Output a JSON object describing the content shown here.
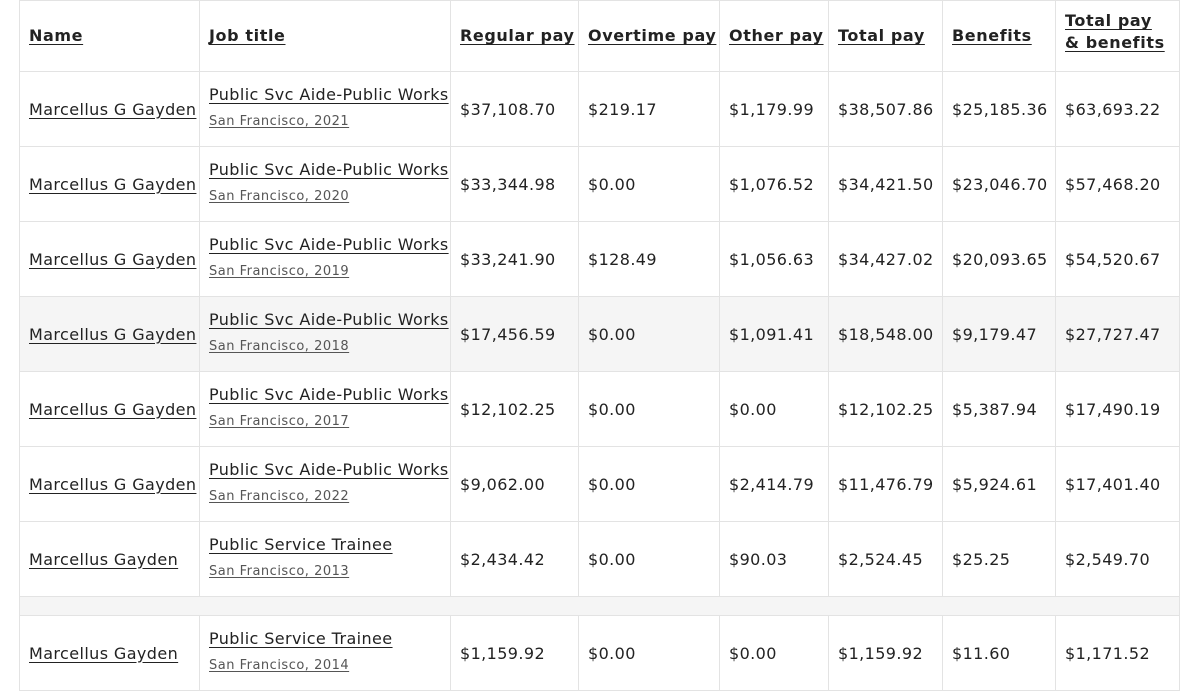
{
  "table": {
    "headers": {
      "name": "Name",
      "job_title": "Job title",
      "regular_pay": "Regular pay",
      "overtime_pay": "Overtime pay",
      "other_pay": "Other pay",
      "total_pay": "Total pay",
      "benefits": "Benefits",
      "total_pay_benefits": "Total pay & benefits"
    },
    "rows": [
      {
        "name": "Marcellus G Gayden",
        "job": "Public Svc Aide-Public Works",
        "agency": "San Francisco, 2021",
        "regular": "$37,108.70",
        "overtime": "$219.17",
        "other": "$1,179.99",
        "total": "$38,507.86",
        "benefits": "$25,185.36",
        "total_benefits": "$63,693.22"
      },
      {
        "name": "Marcellus G Gayden",
        "job": "Public Svc Aide-Public Works",
        "agency": "San Francisco, 2020",
        "regular": "$33,344.98",
        "overtime": "$0.00",
        "other": "$1,076.52",
        "total": "$34,421.50",
        "benefits": "$23,046.70",
        "total_benefits": "$57,468.20"
      },
      {
        "name": "Marcellus G Gayden",
        "job": "Public Svc Aide-Public Works",
        "agency": "San Francisco, 2019",
        "regular": "$33,241.90",
        "overtime": "$128.49",
        "other": "$1,056.63",
        "total": "$34,427.02",
        "benefits": "$20,093.65",
        "total_benefits": "$54,520.67"
      },
      {
        "name": "Marcellus G Gayden",
        "job": "Public Svc Aide-Public Works",
        "agency": "San Francisco, 2018",
        "regular": "$17,456.59",
        "overtime": "$0.00",
        "other": "$1,091.41",
        "total": "$18,548.00",
        "benefits": "$9,179.47",
        "total_benefits": "$27,727.47"
      },
      {
        "name": "Marcellus G Gayden",
        "job": "Public Svc Aide-Public Works",
        "agency": "San Francisco, 2017",
        "regular": "$12,102.25",
        "overtime": "$0.00",
        "other": "$0.00",
        "total": "$12,102.25",
        "benefits": "$5,387.94",
        "total_benefits": "$17,490.19"
      },
      {
        "name": "Marcellus G Gayden",
        "job": "Public Svc Aide-Public Works",
        "agency": "San Francisco, 2022",
        "regular": "$9,062.00",
        "overtime": "$0.00",
        "other": "$2,414.79",
        "total": "$11,476.79",
        "benefits": "$5,924.61",
        "total_benefits": "$17,401.40"
      },
      {
        "name": "Marcellus Gayden",
        "job": "Public Service Trainee",
        "agency": "San Francisco, 2013",
        "regular": "$2,434.42",
        "overtime": "$0.00",
        "other": "$90.03",
        "total": "$2,524.45",
        "benefits": "$25.25",
        "total_benefits": "$2,549.70"
      },
      {
        "name": "Marcellus Gayden",
        "job": "Public Service Trainee",
        "agency": "San Francisco, 2014",
        "regular": "$1,159.92",
        "overtime": "$0.00",
        "other": "$0.00",
        "total": "$1,159.92",
        "benefits": "$11.60",
        "total_benefits": "$1,171.52"
      }
    ]
  }
}
